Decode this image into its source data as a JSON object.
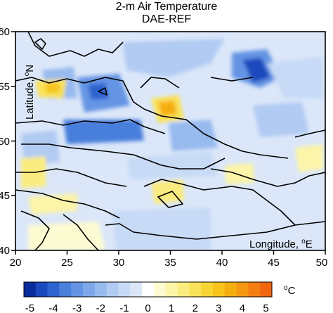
{
  "title": "2-m Air Temperature",
  "subtitle": "DAE-REF",
  "map": {
    "lon_range": [
      20,
      50
    ],
    "lat_range": [
      40,
      60
    ],
    "x_ticks": [
      "20",
      "25",
      "30",
      "35",
      "40",
      "45",
      "50"
    ],
    "y_ticks": [
      "40",
      "45",
      "50",
      "55",
      "60"
    ],
    "x_axis_label": "Longitude, ",
    "x_axis_label_super": "o",
    "x_axis_label_end": "E",
    "y_axis_label": "Latitude, ",
    "y_axis_label_super": "o",
    "y_axis_label_end": "N"
  },
  "colorbar": {
    "unit_super": "o",
    "unit": "C",
    "labels": [
      "-5",
      "-4",
      "-3",
      "-2",
      "-1",
      "0",
      "1",
      "2",
      "3",
      "4",
      "5"
    ],
    "levels": [
      -5,
      -4.5,
      -4,
      -3.5,
      -3,
      -2.5,
      -2,
      -1.5,
      -1,
      -0.5,
      0,
      0.5,
      1,
      1.5,
      2,
      2.5,
      3,
      3.5,
      4,
      4.5,
      5,
      5.5
    ],
    "colors": [
      "#0a2c9c",
      "#1a49bd",
      "#2e64cf",
      "#4a7fdc",
      "#6594e4",
      "#7ea8ea",
      "#97baef",
      "#b1cbf3",
      "#c7daf6",
      "#dbe7f9",
      "#ffffff",
      "#fdfbd2",
      "#fcf4a8",
      "#fbec80",
      "#f9e259",
      "#f7d534",
      "#f6c41b",
      "#f5ae10",
      "#f59711",
      "#f47e13",
      "#f26612"
    ]
  }
}
